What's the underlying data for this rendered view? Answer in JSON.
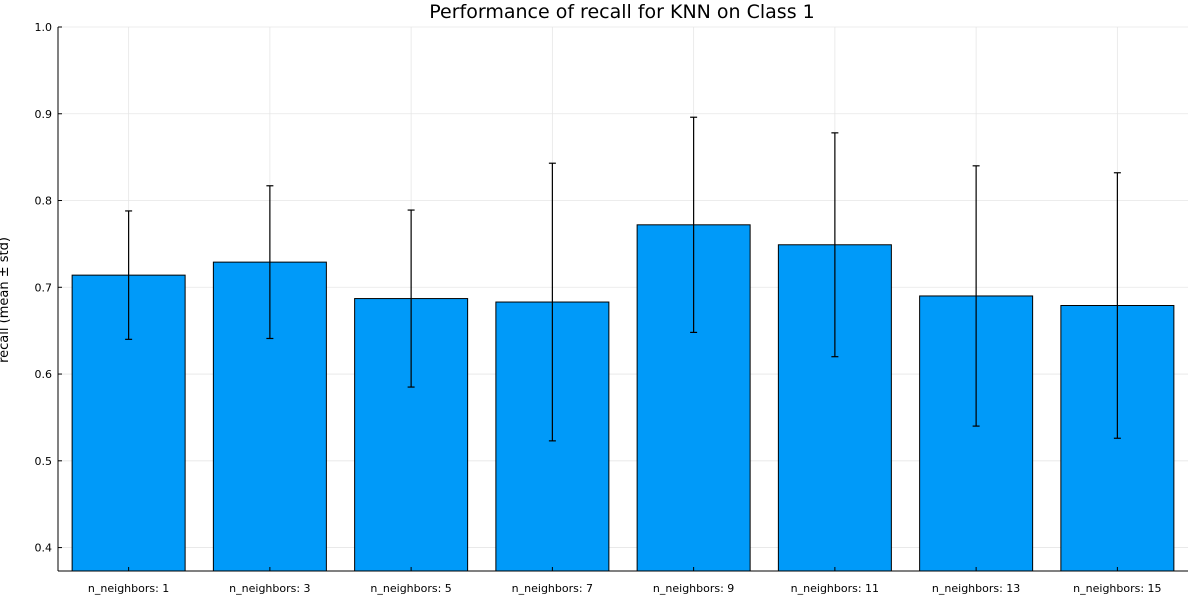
{
  "chart_data": {
    "type": "bar",
    "title": "Performance of recall for KNN on Class 1",
    "xlabel": "",
    "ylabel": "recall (mean ± std)",
    "categories": [
      "n_neighbors: 1",
      "n_neighbors: 3",
      "n_neighbors: 5",
      "n_neighbors: 7",
      "n_neighbors: 9",
      "n_neighbors: 11",
      "n_neighbors: 13",
      "n_neighbors: 15"
    ],
    "series": [
      {
        "values": [
          0.714,
          0.729,
          0.687,
          0.683,
          0.772,
          0.749,
          0.69,
          0.679
        ],
        "error": [
          0.074,
          0.088,
          0.102,
          0.16,
          0.124,
          0.129,
          0.15,
          0.153
        ]
      }
    ],
    "ylim": [
      0.373,
      1.0
    ],
    "yticks": [
      0.4,
      0.5,
      0.6,
      0.7,
      0.8,
      0.9,
      1.0
    ],
    "ytick_labels": [
      "0.4",
      "0.5",
      "0.6",
      "0.7",
      "0.8",
      "0.9",
      "1.0"
    ],
    "grid": true,
    "legend": "none",
    "colors": {
      "bar": "#009af9",
      "edge": "#000000",
      "error": "#000000",
      "grid": "#e6e6e6"
    }
  }
}
